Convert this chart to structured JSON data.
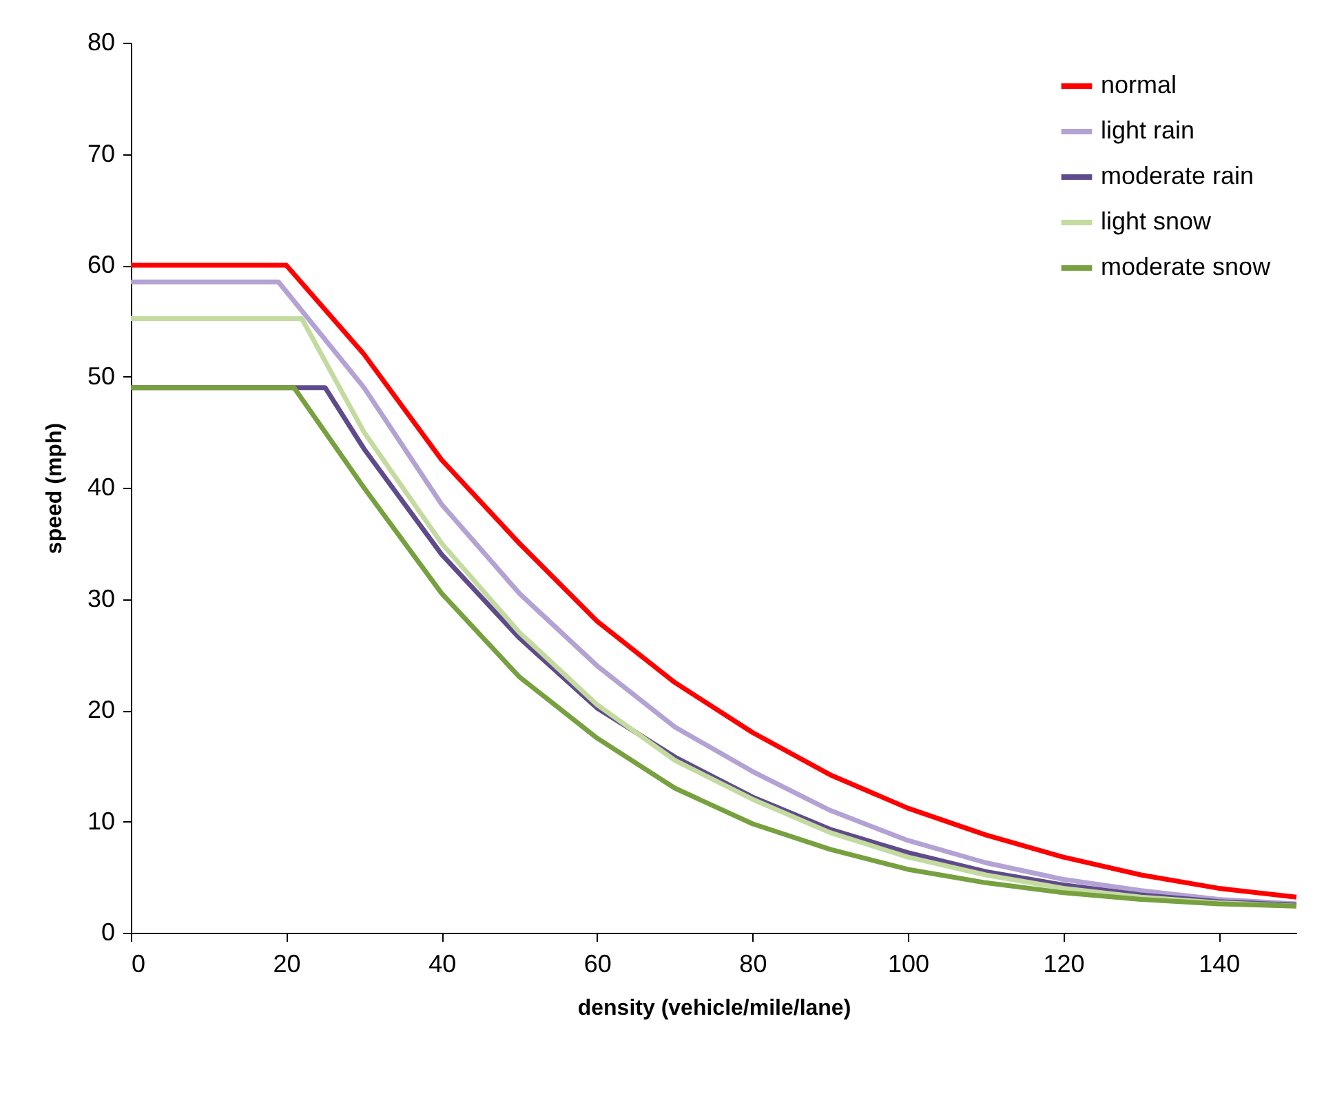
{
  "chart_data": {
    "type": "line",
    "xlabel": "density (vehicle/mile/lane)",
    "ylabel": "speed (mph)",
    "xlim": [
      0,
      150
    ],
    "xticks": [
      0,
      20,
      40,
      60,
      80,
      100,
      120,
      140
    ],
    "ylim": [
      0,
      80
    ],
    "yticks": [
      0,
      10,
      20,
      30,
      40,
      50,
      60,
      70,
      80
    ],
    "grid": false,
    "legend": "top right",
    "marker": "none",
    "line_style": "solid",
    "series": [
      {
        "name": "normal",
        "color": "#ff0000",
        "x": [
          0,
          20,
          30,
          40,
          50,
          60,
          70,
          80,
          90,
          100,
          110,
          120,
          130,
          140,
          150
        ],
        "values": [
          60,
          60,
          52,
          42.5,
          35,
          28,
          22.5,
          18,
          14.2,
          11.2,
          8.8,
          6.8,
          5.2,
          4,
          3.2
        ]
      },
      {
        "name": "light rain",
        "color": "#b3a2d3",
        "x": [
          0,
          19,
          30,
          40,
          50,
          60,
          70,
          80,
          90,
          100,
          110,
          120,
          130,
          140,
          150
        ],
        "values": [
          58.5,
          58.5,
          49,
          38.5,
          30.5,
          24,
          18.5,
          14.5,
          11,
          8.3,
          6.3,
          4.8,
          3.8,
          3,
          2.6
        ]
      },
      {
        "name": "moderate rain",
        "color": "#5f4b8b",
        "x": [
          0,
          25,
          30,
          40,
          50,
          60,
          70,
          80,
          90,
          100,
          110,
          120,
          130,
          140,
          150
        ],
        "values": [
          49,
          49,
          43.5,
          34,
          26.5,
          20.2,
          15.8,
          12.2,
          9.3,
          7.2,
          5.5,
          4.3,
          3.4,
          2.8,
          2.5
        ]
      },
      {
        "name": "light snow",
        "color": "#c4dba0",
        "x": [
          0,
          22,
          30,
          40,
          50,
          60,
          70,
          80,
          90,
          100,
          110,
          120,
          130,
          140,
          150
        ],
        "values": [
          55.2,
          55.2,
          45,
          35,
          27,
          20.5,
          15.5,
          12,
          9,
          6.8,
          5.2,
          4,
          3.2,
          2.7,
          2.4
        ]
      },
      {
        "name": "moderate snow",
        "color": "#77a03f",
        "x": [
          0,
          21,
          30,
          40,
          50,
          60,
          70,
          80,
          90,
          100,
          110,
          120,
          130,
          140,
          150
        ],
        "values": [
          49,
          49,
          40,
          30.5,
          23,
          17.5,
          13,
          9.8,
          7.5,
          5.7,
          4.5,
          3.6,
          3,
          2.6,
          2.4
        ]
      }
    ]
  }
}
